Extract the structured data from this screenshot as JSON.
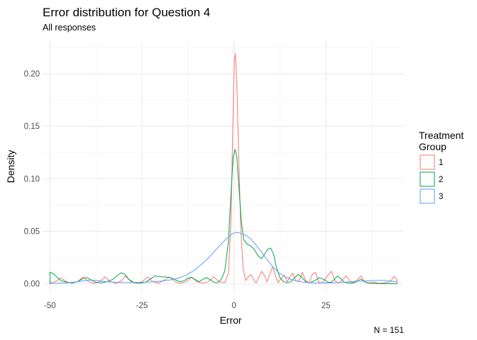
{
  "chart_data": {
    "type": "line",
    "title": "Error distribution for Question 4",
    "subtitle": "All responses",
    "xlabel": "Error",
    "ylabel": "Density",
    "caption": "N = 151",
    "xlim": [
      -52,
      46
    ],
    "ylim": [
      -0.009,
      0.231
    ],
    "x_ticks": [
      -50,
      -25,
      0,
      25
    ],
    "y_ticks": [
      0.0,
      0.05,
      0.1,
      0.15,
      0.2
    ],
    "x_tick_labels": [
      "-50",
      "-25",
      "0",
      "25"
    ],
    "y_tick_labels": [
      "0.00",
      "0.05",
      "0.10",
      "0.15",
      "0.20"
    ],
    "grid": true,
    "legend": {
      "title": "Treatment Group",
      "title_lines": [
        "Treatment",
        "Group"
      ],
      "placement": "right"
    },
    "series": [
      {
        "name": "1",
        "color": "#F8766D",
        "points": [
          [
            -50,
            0.001
          ],
          [
            -48.5,
            0.002
          ],
          [
            -47,
            0.0055
          ],
          [
            -45.5,
            0.002
          ],
          [
            -44,
            0.0005
          ],
          [
            -42.5,
            0.002
          ],
          [
            -41,
            0.0065
          ],
          [
            -39.5,
            0.002
          ],
          [
            -38,
            0.0005
          ],
          [
            -36.5,
            0.002
          ],
          [
            -35,
            0.0065
          ],
          [
            -33.5,
            0.002
          ],
          [
            -32,
            0.0005
          ],
          [
            -30.5,
            0.003
          ],
          [
            -29.5,
            0.0075
          ],
          [
            -28,
            0.002
          ],
          [
            -26.5,
            0.0005
          ],
          [
            -25,
            0.002
          ],
          [
            -23.5,
            0.0065
          ],
          [
            -22,
            0.002
          ],
          [
            -20.5,
            0.0005
          ],
          [
            -19,
            0.0035
          ],
          [
            -17.5,
            0.0065
          ],
          [
            -16,
            0.002
          ],
          [
            -14.5,
            0.0005
          ],
          [
            -13,
            0.002
          ],
          [
            -11.5,
            0.0065
          ],
          [
            -10,
            0.002
          ],
          [
            -8.5,
            0.0005
          ],
          [
            -7,
            0.002
          ],
          [
            -5.5,
            0.0065
          ],
          [
            -4,
            0.002
          ],
          [
            -2.5,
            0.001
          ],
          [
            -1.5,
            0.01
          ],
          [
            -0.8,
            0.06
          ],
          [
            -0.3,
            0.15
          ],
          [
            0.1,
            0.2125
          ],
          [
            0.4,
            0.219
          ],
          [
            0.8,
            0.19
          ],
          [
            1.3,
            0.12
          ],
          [
            1.9,
            0.05
          ],
          [
            2.5,
            0.015
          ],
          [
            3.2,
            0.003
          ],
          [
            4,
            0.007
          ],
          [
            4.6,
            0.009
          ],
          [
            5.3,
            0.004
          ],
          [
            6,
            0.001
          ],
          [
            6.8,
            0.006
          ],
          [
            7.5,
            0.012
          ],
          [
            8.3,
            0.008
          ],
          [
            9,
            0.002
          ],
          [
            9.8,
            0.01
          ],
          [
            10.5,
            0.016
          ],
          [
            11.3,
            0.008
          ],
          [
            12,
            0.001
          ],
          [
            13,
            0.006
          ],
          [
            13.7,
            0.008
          ],
          [
            14.5,
            0.002
          ],
          [
            15.3,
            0.007
          ],
          [
            16,
            0.01
          ],
          [
            16.8,
            0.003
          ],
          [
            17.6,
            0.002
          ],
          [
            18.6,
            0.011
          ],
          [
            19.5,
            0.003
          ],
          [
            20.4,
            0.001
          ],
          [
            21.3,
            0.009
          ],
          [
            22.2,
            0.011
          ],
          [
            23,
            0.002
          ],
          [
            24,
            0.0005
          ],
          [
            25.5,
            0.008
          ],
          [
            26.5,
            0.012
          ],
          [
            27.5,
            0.003
          ],
          [
            28.5,
            0.0005
          ],
          [
            29.5,
            0.004
          ],
          [
            30.5,
            0.0075
          ],
          [
            31.5,
            0.003
          ],
          [
            32.5,
            0.0005
          ],
          [
            33.5,
            0.004
          ],
          [
            34.5,
            0.0075
          ],
          [
            35.5,
            0.002
          ],
          [
            36.5,
            0.0005
          ],
          [
            38,
            0.0015
          ],
          [
            39.5,
            0.0005
          ],
          [
            41,
            0.001
          ],
          [
            42.5,
            0.002
          ],
          [
            43.5,
            0.007
          ],
          [
            44.3,
            0.004
          ]
        ]
      },
      {
        "name": "2",
        "color": "#00A64C",
        "points": [
          [
            -50,
            0.011
          ],
          [
            -49,
            0.0095
          ],
          [
            -48,
            0.006
          ],
          [
            -47,
            0.003
          ],
          [
            -45.5,
            0.0015
          ],
          [
            -44,
            0.001
          ],
          [
            -42.5,
            0.002
          ],
          [
            -41,
            0.005
          ],
          [
            -40,
            0.006
          ],
          [
            -39,
            0.004
          ],
          [
            -37.5,
            0.0015
          ],
          [
            -36,
            0.001
          ],
          [
            -34.5,
            0.002
          ],
          [
            -33,
            0.004
          ],
          [
            -31.8,
            0.0075
          ],
          [
            -30.7,
            0.0105
          ],
          [
            -29.6,
            0.009
          ],
          [
            -28.5,
            0.004
          ],
          [
            -27,
            0.001
          ],
          [
            -25.5,
            0.0005
          ],
          [
            -24,
            0.0015
          ],
          [
            -22.5,
            0.005
          ],
          [
            -21.5,
            0.0075
          ],
          [
            -20.5,
            0.007
          ],
          [
            -19.5,
            0.0065
          ],
          [
            -18.5,
            0.0065
          ],
          [
            -17.5,
            0.006
          ],
          [
            -16.5,
            0.005
          ],
          [
            -15.5,
            0.003
          ],
          [
            -14.5,
            0.002
          ],
          [
            -13.5,
            0.003
          ],
          [
            -12.5,
            0.0055
          ],
          [
            -11.5,
            0.006
          ],
          [
            -10.5,
            0.004
          ],
          [
            -9.5,
            0.002
          ],
          [
            -8.5,
            0.004
          ],
          [
            -7.5,
            0.006
          ],
          [
            -6.5,
            0.004
          ],
          [
            -5.5,
            0.0015
          ],
          [
            -4.5,
            0.001
          ],
          [
            -3.5,
            0.004
          ],
          [
            -2.5,
            0.012
          ],
          [
            -1.5,
            0.04
          ],
          [
            -0.8,
            0.085
          ],
          [
            -0.2,
            0.12
          ],
          [
            0.3,
            0.128
          ],
          [
            0.8,
            0.12
          ],
          [
            1.4,
            0.09
          ],
          [
            2,
            0.06
          ],
          [
            2.7,
            0.042
          ],
          [
            3.5,
            0.038
          ],
          [
            4.5,
            0.036
          ],
          [
            5.5,
            0.033
          ],
          [
            6.5,
            0.027
          ],
          [
            7.5,
            0.024
          ],
          [
            8.3,
            0.028
          ],
          [
            9.2,
            0.033
          ],
          [
            10,
            0.034
          ],
          [
            10.8,
            0.028
          ],
          [
            11.6,
            0.015
          ],
          [
            12.5,
            0.006
          ],
          [
            13.5,
            0.002
          ],
          [
            14.5,
            0.001
          ],
          [
            15.5,
            0.002
          ],
          [
            16.5,
            0.006
          ],
          [
            17.5,
            0.009
          ],
          [
            18.5,
            0.006
          ],
          [
            19.5,
            0.002
          ],
          [
            20.5,
            0.001
          ],
          [
            22,
            0.003
          ],
          [
            23.2,
            0.006
          ],
          [
            24.5,
            0.004
          ],
          [
            25.5,
            0.0015
          ],
          [
            26.5,
            0.0015
          ],
          [
            27.5,
            0.005
          ],
          [
            28.2,
            0.0075
          ],
          [
            29,
            0.005
          ],
          [
            30,
            0.0015
          ],
          [
            31.5,
            0.0005
          ],
          [
            33,
            0.0015
          ],
          [
            34.5,
            0.0045
          ],
          [
            35.5,
            0.002
          ],
          [
            37,
            0.0005
          ],
          [
            39,
            0.0003
          ],
          [
            44.3,
            0.0
          ]
        ]
      },
      {
        "name": "3",
        "color": "#619CFF",
        "points": [
          [
            -50,
            0.0002
          ],
          [
            -46,
            0.0008
          ],
          [
            -43,
            0.0018
          ],
          [
            -40.5,
            0.003
          ],
          [
            -38.5,
            0.0035
          ],
          [
            -36.5,
            0.0028
          ],
          [
            -34,
            0.0018
          ],
          [
            -31,
            0.0012
          ],
          [
            -28,
            0.0012
          ],
          [
            -25,
            0.0014
          ],
          [
            -22,
            0.002
          ],
          [
            -19,
            0.0028
          ],
          [
            -16,
            0.0045
          ],
          [
            -13,
            0.008
          ],
          [
            -10.5,
            0.0135
          ],
          [
            -8,
            0.021
          ],
          [
            -6,
            0.028
          ],
          [
            -4,
            0.036
          ],
          [
            -2,
            0.043
          ],
          [
            -0.5,
            0.0475
          ],
          [
            0.5,
            0.0488
          ],
          [
            1.5,
            0.0485
          ],
          [
            3,
            0.0465
          ],
          [
            4.5,
            0.043
          ],
          [
            6,
            0.037
          ],
          [
            7.5,
            0.03
          ],
          [
            9,
            0.023
          ],
          [
            10.5,
            0.0165
          ],
          [
            12,
            0.011
          ],
          [
            14,
            0.0065
          ],
          [
            16,
            0.0035
          ],
          [
            19,
            0.0015
          ],
          [
            22,
            0.0008
          ],
          [
            25,
            0.0008
          ],
          [
            28,
            0.0012
          ],
          [
            31,
            0.0018
          ],
          [
            34,
            0.0025
          ],
          [
            37,
            0.003
          ],
          [
            40,
            0.0033
          ],
          [
            43,
            0.0025
          ],
          [
            44.3,
            0.002
          ]
        ]
      }
    ]
  }
}
